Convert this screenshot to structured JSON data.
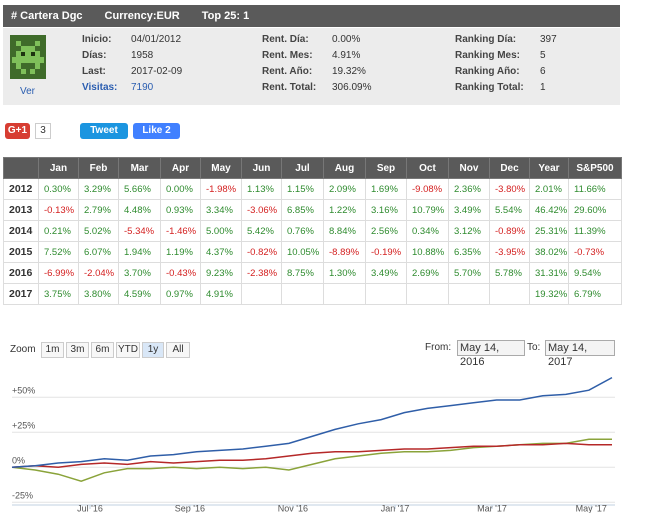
{
  "header": {
    "title": "# Cartera Dgc",
    "currency": "Currency:EUR",
    "top": "Top 25: 1"
  },
  "profile": {
    "link": "Ver"
  },
  "stats": [
    [
      {
        "label": "Inicio:",
        "value": "04/01/2012"
      },
      {
        "label": "Días:",
        "value": "1958"
      },
      {
        "label": "Last:",
        "value": "2017-02-09"
      },
      {
        "label": "Visitas:",
        "value": "7190"
      }
    ],
    [
      {
        "label": "Rent. Día:",
        "value": "0.00%"
      },
      {
        "label": "Rent. Mes:",
        "value": "4.91%"
      },
      {
        "label": "Rent. Año:",
        "value": "19.32%"
      },
      {
        "label": "Rent. Total:",
        "value": "306.09%"
      }
    ],
    [
      {
        "label": "Ranking Día:",
        "value": "397"
      },
      {
        "label": "Ranking Mes:",
        "value": "5"
      },
      {
        "label": "Ranking Año:",
        "value": "6"
      },
      {
        "label": "Ranking Total:",
        "value": "1"
      }
    ]
  ],
  "social": {
    "gplus": "G+1",
    "gplus_count": "3",
    "tweet": "Tweet",
    "like": "Like 2"
  },
  "table": {
    "header": [
      "Jan",
      "Feb",
      "Mar",
      "Apr",
      "May",
      "Jun",
      "Jul",
      "Aug",
      "Sep",
      "Oct",
      "Nov",
      "Dec",
      "Year",
      "S&P500"
    ],
    "rows": [
      {
        "year": "2012",
        "cells": [
          "0.30%",
          "3.29%",
          "5.66%",
          "0.00%",
          "-1.98%",
          "1.13%",
          "1.15%",
          "2.09%",
          "1.69%",
          "-9.08%",
          "2.36%",
          "-3.80%",
          "2.01%",
          "11.66%"
        ]
      },
      {
        "year": "2013",
        "cells": [
          "-0.13%",
          "2.79%",
          "4.48%",
          "0.93%",
          "3.34%",
          "-3.06%",
          "6.85%",
          "1.22%",
          "3.16%",
          "10.79%",
          "3.49%",
          "5.54%",
          "46.42%",
          "29.60%"
        ]
      },
      {
        "year": "2014",
        "cells": [
          "0.21%",
          "5.02%",
          "-5.34%",
          "-1.46%",
          "5.00%",
          "5.42%",
          "0.76%",
          "8.84%",
          "2.56%",
          "0.34%",
          "3.12%",
          "-0.89%",
          "25.31%",
          "11.39%"
        ]
      },
      {
        "year": "2015",
        "cells": [
          "7.52%",
          "6.07%",
          "1.94%",
          "1.19%",
          "4.37%",
          "-0.82%",
          "10.05%",
          "-8.89%",
          "-0.19%",
          "10.88%",
          "6.35%",
          "-3.95%",
          "38.02%",
          "-0.73%"
        ]
      },
      {
        "year": "2016",
        "cells": [
          "-6.99%",
          "-2.04%",
          "3.70%",
          "-0.43%",
          "9.23%",
          "-2.38%",
          "8.75%",
          "1.30%",
          "3.49%",
          "2.69%",
          "5.70%",
          "5.78%",
          "31.31%",
          "9.54%"
        ]
      },
      {
        "year": "2017",
        "cells": [
          "3.75%",
          "3.80%",
          "4.59%",
          "0.97%",
          "4.91%",
          null,
          null,
          null,
          null,
          null,
          null,
          null,
          "19.32%",
          "6.79%"
        ]
      }
    ]
  },
  "range": {
    "zoom": "Zoom",
    "buttons": [
      "1m",
      "3m",
      "6m",
      "YTD",
      "1y",
      "All"
    ],
    "selected": 4,
    "from_label": "From:",
    "from": "May 14, 2016",
    "to_label": "To:",
    "to": "May 14, 2017"
  },
  "chart_data": {
    "type": "line",
    "xlim": [
      0,
      26
    ],
    "xticks": [
      {
        "value": 3.38,
        "label": "Jul '16"
      },
      {
        "value": 7.71,
        "label": "Sep '16"
      },
      {
        "value": 12.17,
        "label": "Nov '16"
      },
      {
        "value": 16.6,
        "label": "Jan '17"
      },
      {
        "value": 20.8,
        "label": "Mar '17"
      },
      {
        "value": 25.1,
        "label": "May '17"
      }
    ],
    "ylim": [
      -27,
      68
    ],
    "yticks": [
      {
        "value": 50,
        "label": "+50%"
      },
      {
        "value": 25,
        "label": "+25%"
      },
      {
        "value": 0,
        "label": "0%"
      },
      {
        "value": -25,
        "label": "-25%"
      }
    ],
    "grid": true,
    "series": [
      {
        "color": "#2f5ea8",
        "values": [
          0,
          1,
          3,
          4,
          6,
          5,
          8,
          9,
          11,
          12,
          13,
          15,
          17,
          22,
          27,
          31,
          34,
          39,
          42,
          44,
          46,
          48,
          48,
          51,
          52,
          55,
          64
        ]
      },
      {
        "color": "#8aa33a",
        "values": [
          0,
          -2,
          -5,
          -10,
          -4,
          -1,
          -1,
          0,
          -1,
          0,
          -1,
          0,
          -2,
          2,
          6,
          8,
          10,
          11,
          11,
          12,
          14,
          15,
          16,
          17,
          17,
          20,
          20
        ]
      },
      {
        "color": "#b52828",
        "values": [
          0,
          1,
          0,
          2,
          3,
          2,
          4,
          3,
          4,
          5,
          5,
          6,
          8,
          10,
          11,
          11,
          12,
          13,
          13,
          14,
          15,
          15,
          16,
          16,
          17,
          16,
          16
        ]
      }
    ]
  }
}
